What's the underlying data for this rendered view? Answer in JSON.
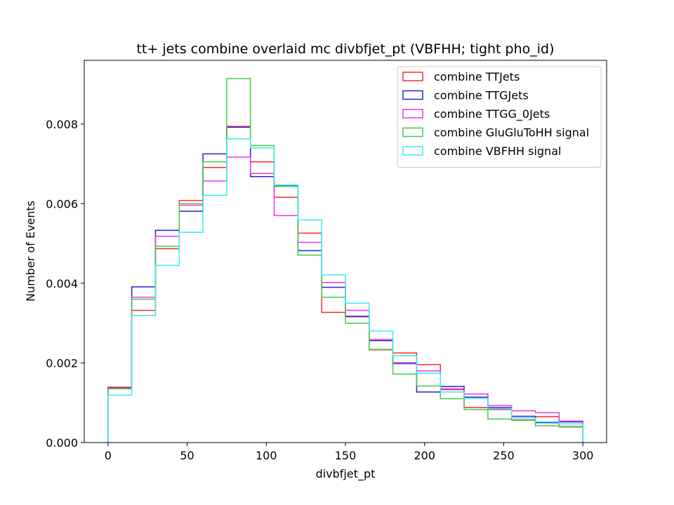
{
  "chart_data": {
    "type": "histogram-step",
    "title": "tt+ jets combine overlaid mc divbfjet_pt (VBFHH; tight pho_id)",
    "xlabel": "divbfjet_pt",
    "ylabel": "Number of Events",
    "xlim": [
      -15,
      315
    ],
    "ylim": [
      0,
      0.0096
    ],
    "xticks": [
      0,
      50,
      100,
      150,
      200,
      250,
      300
    ],
    "xtick_labels": [
      "0",
      "50",
      "100",
      "150",
      "200",
      "250",
      "300"
    ],
    "yticks": [
      0,
      0.002,
      0.004,
      0.006,
      0.008
    ],
    "ytick_labels": [
      "0.000",
      "0.002",
      "0.004",
      "0.006",
      "0.008"
    ],
    "grid": false,
    "legend_position": "top-right",
    "bin_edges": [
      0,
      15,
      30,
      45,
      60,
      75,
      90,
      105,
      120,
      135,
      150,
      165,
      180,
      195,
      210,
      225,
      240,
      255,
      270,
      285,
      300
    ],
    "series": [
      {
        "name": "combine TTJets",
        "color": "#ff2a2a",
        "values": [
          0.00139,
          0.00332,
          0.00487,
          0.00608,
          0.00691,
          0.00794,
          0.00705,
          0.00616,
          0.00526,
          0.00327,
          0.00316,
          0.00233,
          0.00225,
          0.00196,
          0.00133,
          0.00088,
          0.00083,
          0.00057,
          0.00065,
          0.0004
        ]
      },
      {
        "name": "combine TTGJets",
        "color": "#2222dd",
        "values": [
          0.00137,
          0.00391,
          0.00533,
          0.00581,
          0.00725,
          0.00792,
          0.00668,
          0.00646,
          0.00482,
          0.0039,
          0.00317,
          0.00256,
          0.002,
          0.00127,
          0.00141,
          0.00114,
          0.00088,
          0.00066,
          0.0005,
          0.00052
        ]
      },
      {
        "name": "combine TTGG_0Jets",
        "color": "#ee33ee",
        "values": [
          0.00136,
          0.00365,
          0.00518,
          0.00596,
          0.00657,
          0.00717,
          0.00676,
          0.0057,
          0.00503,
          0.00402,
          0.00332,
          0.00259,
          0.00198,
          0.0018,
          0.00135,
          0.00122,
          0.00093,
          0.0008,
          0.00075,
          0.00054
        ]
      },
      {
        "name": "combine GluGluToHH signal",
        "color": "#44cc44",
        "values": [
          0.00135,
          0.0036,
          0.00493,
          0.006,
          0.00705,
          0.00914,
          0.00746,
          0.00643,
          0.00471,
          0.00365,
          0.003,
          0.00234,
          0.00172,
          0.00142,
          0.0011,
          0.00083,
          0.00059,
          0.00056,
          0.00042,
          0.00039
        ]
      },
      {
        "name": "combine VBFHH signal",
        "color": "#33eeee",
        "values": [
          0.00119,
          0.00319,
          0.00445,
          0.00528,
          0.00621,
          0.00763,
          0.0074,
          0.00647,
          0.00559,
          0.00421,
          0.0035,
          0.0028,
          0.00218,
          0.00174,
          0.00127,
          0.00111,
          0.00085,
          0.00062,
          0.00052,
          0.00047
        ]
      }
    ]
  }
}
